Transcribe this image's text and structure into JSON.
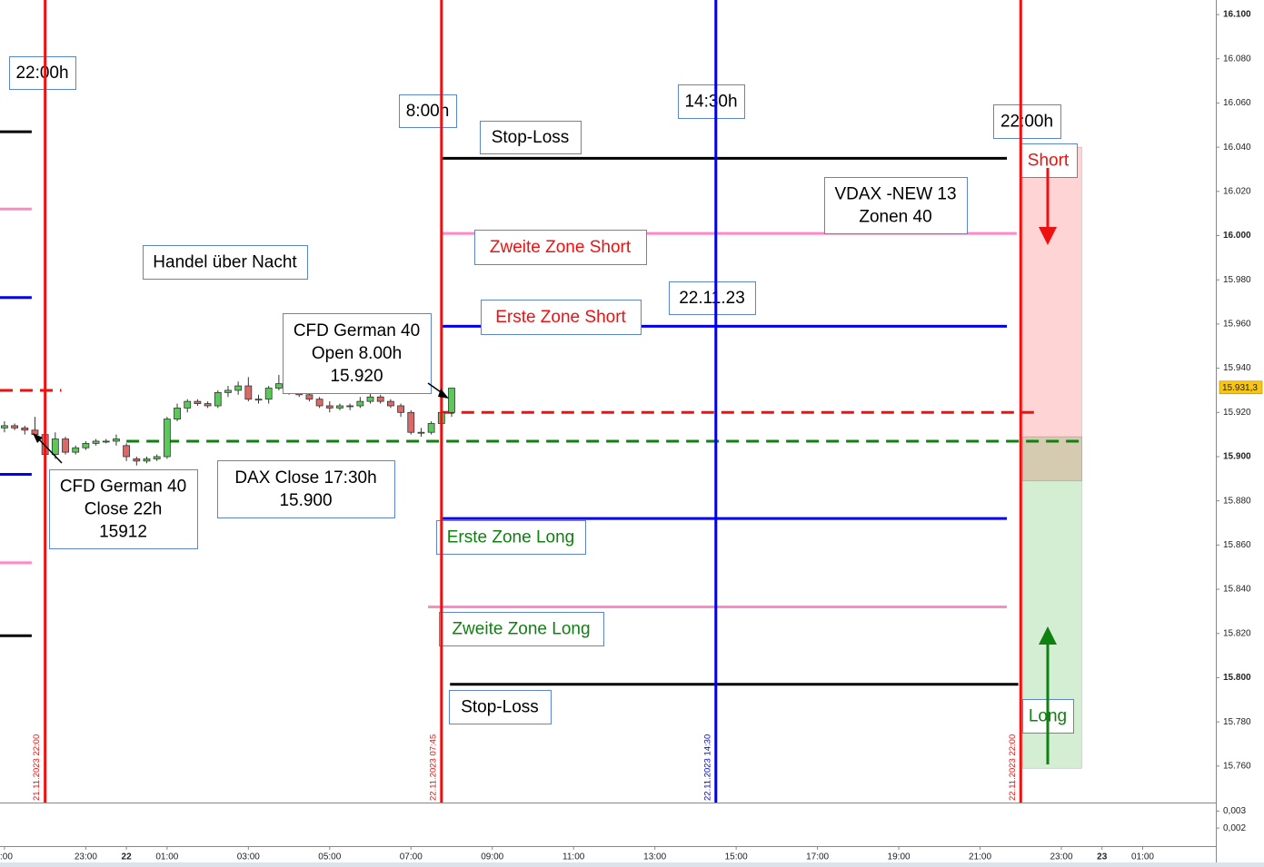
{
  "chart_data": {
    "type": "candlestick",
    "xlim": [
      20.89,
      50.8
    ],
    "ylim": [
      15743.5,
      16106.6
    ],
    "xticks": [
      {
        "value": 21,
        "label": ":00"
      },
      {
        "value": 23,
        "label": "23:00"
      },
      {
        "value": 24,
        "label": "22"
      },
      {
        "value": 25,
        "label": "01:00"
      },
      {
        "value": 27,
        "label": "03:00"
      },
      {
        "value": 29,
        "label": "05:00"
      },
      {
        "value": 31,
        "label": "07:00"
      },
      {
        "value": 33,
        "label": "09:00"
      },
      {
        "value": 35,
        "label": "11:00"
      },
      {
        "value": 37,
        "label": "13:00"
      },
      {
        "value": 39,
        "label": "15:00"
      },
      {
        "value": 41,
        "label": "17:00"
      },
      {
        "value": 43,
        "label": "19:00"
      },
      {
        "value": 45,
        "label": "21:00"
      },
      {
        "value": 47,
        "label": "23:00"
      },
      {
        "value": 48,
        "label": "23"
      },
      {
        "value": 49,
        "label": "01:00"
      }
    ],
    "yticks": [
      {
        "value": 16100,
        "label": "16.100"
      },
      {
        "value": 16080,
        "label": "16.080"
      },
      {
        "value": 16060,
        "label": "16.060"
      },
      {
        "value": 16040,
        "label": "16.040"
      },
      {
        "value": 16020,
        "label": "16.020"
      },
      {
        "value": 16000,
        "label": "16.000"
      },
      {
        "value": 15980,
        "label": "15.980"
      },
      {
        "value": 15960,
        "label": "15.960"
      },
      {
        "value": 15940,
        "label": "15.940"
      },
      {
        "value": 15920,
        "label": "15.920"
      },
      {
        "value": 15900,
        "label": "15.900"
      },
      {
        "value": 15880,
        "label": "15.880"
      },
      {
        "value": 15860,
        "label": "15.860"
      },
      {
        "value": 15840,
        "label": "15.840"
      },
      {
        "value": 15820,
        "label": "15.820"
      },
      {
        "value": 15800,
        "label": "15.800"
      },
      {
        "value": 15780,
        "label": "15.780"
      },
      {
        "value": 15760,
        "label": "15.760"
      }
    ],
    "last_price": {
      "value": 15931.3,
      "label": "15.931,3"
    },
    "candles": {
      "x": [
        21,
        21.25,
        21.5,
        21.75,
        22,
        22.25,
        22.5,
        22.75,
        23,
        23.25,
        23.5,
        23.75,
        24,
        24.25,
        24.5,
        24.75,
        25,
        25.25,
        25.5,
        25.75,
        26,
        26.25,
        26.5,
        26.75,
        27,
        27.25,
        27.5,
        27.75,
        28,
        28.25,
        28.5,
        28.75,
        29,
        29.25,
        29.5,
        29.75,
        30,
        30.25,
        30.5,
        30.75,
        31,
        31.25,
        31.5,
        31.75,
        32
      ],
      "open": [
        15913,
        15914,
        15913,
        15912,
        15910,
        15901,
        15908,
        15902,
        15904,
        15906,
        15907,
        15907,
        15905,
        15899,
        15898,
        15899,
        15900,
        15917,
        15922,
        15925,
        15924,
        15923,
        15929,
        15930,
        15932,
        15926,
        15926,
        15931,
        15933,
        15930,
        15928,
        15926,
        15923,
        15922,
        15923,
        15923,
        15925,
        15927,
        15925,
        15923,
        15920,
        15911,
        15911,
        15915,
        15920
      ],
      "high": [
        15916,
        15915,
        15914,
        15918,
        15912,
        15911,
        15909,
        15905,
        15907,
        15908,
        15908,
        15910,
        15906,
        15900,
        15900,
        15901,
        15918,
        15924,
        15926,
        15926,
        15925,
        15930,
        15932,
        15934,
        15936,
        15928,
        15932,
        15937,
        15935,
        15931,
        15929,
        15927,
        15925,
        15924,
        15924,
        15927,
        15929,
        15928,
        15926,
        15924,
        15921,
        15913,
        15916,
        15922,
        15931
      ],
      "low": [
        15911,
        15912,
        15910,
        15909,
        15899,
        15899,
        15901,
        15901,
        15903,
        15905,
        15906,
        15905,
        15898,
        15896,
        15897,
        15898,
        15899,
        15916,
        15920,
        15923,
        15922,
        15922,
        15927,
        15928,
        15925,
        15924,
        15924,
        15930,
        15928,
        15927,
        15925,
        15922,
        15920,
        15921,
        15921,
        15922,
        15924,
        15924,
        15922,
        15918,
        15910,
        15909,
        15910,
        15913,
        15918
      ],
      "close": [
        15914,
        15913,
        15912,
        15910,
        15901,
        15908,
        15902,
        15904,
        15906,
        15907,
        15907,
        15908,
        15900,
        15898,
        15899,
        15900,
        15917,
        15922,
        15925,
        15924,
        15923,
        15929,
        15930,
        15932,
        15926,
        15926,
        15931,
        15933,
        15930,
        15928,
        15926,
        15923,
        15922,
        15923,
        15923,
        15925,
        15927,
        15925,
        15923,
        15920,
        15911,
        15911,
        15915,
        15920,
        15931
      ],
      "up_color": "#5cc85c",
      "down_color": "#d86a6a"
    },
    "levels": [
      {
        "value": 16047,
        "start": 20.89,
        "end": 21.67,
        "color": "#000000",
        "style": "solid"
      },
      {
        "value": 16012,
        "start": 20.89,
        "end": 21.67,
        "color": "#ff88c8",
        "style": "solid"
      },
      {
        "value": 15972,
        "start": 20.89,
        "end": 21.67,
        "color": "#0000ee",
        "style": "solid"
      },
      {
        "value": 15930,
        "start": 20.89,
        "end": 22.4,
        "color": "#ee1111",
        "style": "dashed"
      },
      {
        "value": 15892,
        "start": 20.89,
        "end": 21.67,
        "color": "#0000ee",
        "style": "solid"
      },
      {
        "value": 15852,
        "start": 20.89,
        "end": 21.67,
        "color": "#ff88c8",
        "style": "solid"
      },
      {
        "value": 15819,
        "start": 20.89,
        "end": 21.67,
        "color": "#000000",
        "style": "solid"
      },
      {
        "value": 16035,
        "start": 31.75,
        "end": 45.66,
        "color": "#000000",
        "style": "solid"
      },
      {
        "value": 16001,
        "start": 31.75,
        "end": 45.9,
        "color": "#ff88c8",
        "style": "solid"
      },
      {
        "value": 15959,
        "start": 31.75,
        "end": 45.66,
        "color": "#0000ee",
        "style": "solid"
      },
      {
        "value": 15920,
        "start": 31.75,
        "end": 46.43,
        "color": "#ee1111",
        "style": "dashed"
      },
      {
        "value": 15907,
        "start": 24,
        "end": 47.46,
        "color": "#108010",
        "style": "dashed"
      },
      {
        "value": 15872,
        "start": 31.75,
        "end": 45.66,
        "color": "#0000ee",
        "style": "solid"
      },
      {
        "value": 15832,
        "start": 31.42,
        "end": 45.66,
        "color": "#ff88c8",
        "style": "solid"
      },
      {
        "value": 15797,
        "start": 31.96,
        "end": 45.94,
        "color": "#000000",
        "style": "solid"
      }
    ],
    "zones": [
      {
        "from": 16040,
        "to": 15889,
        "start": 46.05,
        "end": 47.5,
        "color": "rgba(255,40,40,0.2)"
      },
      {
        "from": 15909,
        "to": 15759,
        "start": 46.05,
        "end": 47.5,
        "color": "rgba(40,170,40,0.2)"
      }
    ],
    "vlines": [
      {
        "x": 22,
        "color": "#ee1111",
        "label": "21.11.2023 22:00"
      },
      {
        "x": 31.75,
        "color": "#ee1111",
        "label": "22.11.2023 07:45"
      },
      {
        "x": 38.5,
        "color": "#0000ee",
        "label": "22.11.2023 14:30"
      },
      {
        "x": 46,
        "color": "#ee1111",
        "label": "22.11.2023 22:00"
      }
    ],
    "annotations": [
      {
        "lines": [
          "22:00h"
        ],
        "color": "#000000"
      },
      {
        "lines": [
          "8:00h"
        ],
        "color": "#000000"
      },
      {
        "lines": [
          "14:30h"
        ],
        "color": "#000000"
      },
      {
        "lines": [
          "22:00h"
        ],
        "color": "#000000"
      },
      {
        "lines": [
          "Stop-Loss"
        ],
        "color": "#000000"
      },
      {
        "lines": [
          "VDAX -NEW 13",
          "Zonen 40"
        ],
        "color": "#000000"
      },
      {
        "lines": [
          "Zweite Zone Short"
        ],
        "color": "#ee1111"
      },
      {
        "lines": [
          "Handel über Nacht"
        ],
        "color": "#000000"
      },
      {
        "lines": [
          "22.11.23"
        ],
        "color": "#000000"
      },
      {
        "lines": [
          "Erste Zone Short"
        ],
        "color": "#ee1111"
      },
      {
        "lines": [
          "CFD German 40",
          "Open 8.00h",
          "15.920"
        ],
        "color": "#000000"
      },
      {
        "lines": [
          "DAX Close 17:30h",
          "15.900"
        ],
        "color": "#000000"
      },
      {
        "lines": [
          "CFD German 40",
          "Close 22h",
          "15912"
        ],
        "color": "#000000"
      },
      {
        "lines": [
          "Erste Zone Long"
        ],
        "color": "#108010"
      },
      {
        "lines": [
          "Zweite Zone Long"
        ],
        "color": "#108010"
      },
      {
        "lines": [
          "Stop-Loss"
        ],
        "color": "#000000"
      },
      {
        "lines": [
          "Short"
        ],
        "color": "#ee1111"
      },
      {
        "lines": [
          "Long"
        ],
        "color": "#108010"
      }
    ],
    "indicator": {
      "ylim": [
        0.00094,
        0.0035
      ],
      "yticks": [
        {
          "value": 0.003,
          "label": "0,003"
        },
        {
          "value": 0.002,
          "label": "0,002"
        }
      ]
    }
  }
}
